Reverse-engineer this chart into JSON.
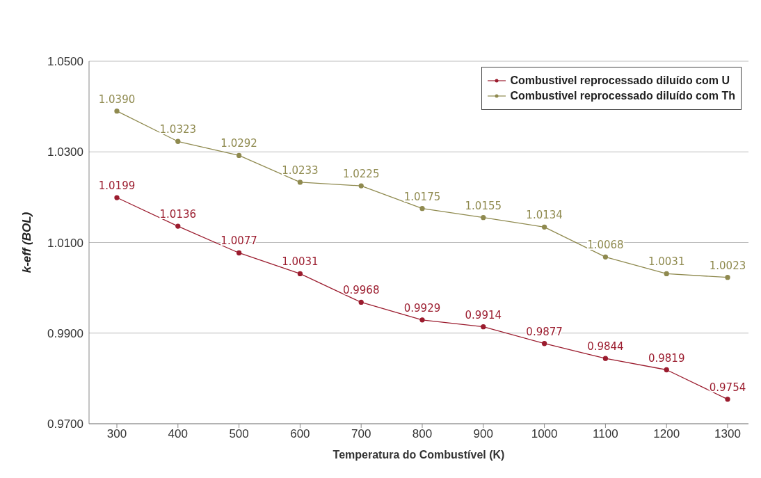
{
  "chart_data": {
    "type": "line",
    "xlabel": "Temperatura do Combustível (K)",
    "ylabel": "k-eff (BOL)",
    "categories": [
      "300",
      "400",
      "500",
      "600",
      "700",
      "800",
      "900",
      "1000",
      "1100",
      "1200",
      "1300"
    ],
    "series": [
      {
        "name": "Combustivel reprocessado diluído com U",
        "color": "#9b1c2e",
        "values": [
          1.0199,
          1.0136,
          1.0077,
          1.0031,
          0.9968,
          0.9929,
          0.9914,
          0.9877,
          0.9844,
          0.9819,
          0.9754
        ],
        "value_labels": [
          "1.0199",
          "1.0136",
          "1.0077",
          "1.0031",
          "0.9968",
          "0.9929",
          "0.9914",
          "0.9877",
          "0.9844",
          "0.9819",
          "0.9754"
        ]
      },
      {
        "name": "Combustivel reprocessado diluído com Th",
        "color": "#8f8a4f",
        "values": [
          1.039,
          1.0323,
          1.0292,
          1.0233,
          1.0225,
          1.0175,
          1.0155,
          1.0134,
          1.0068,
          1.0031,
          1.0023
        ],
        "value_labels": [
          "1.0390",
          "1.0323",
          "1.0292",
          "1.0233",
          "1.0225",
          "1.0175",
          "1.0155",
          "1.0134",
          "1.0068",
          "1.0031",
          "1.0023"
        ]
      }
    ],
    "ylim": [
      0.97,
      1.05
    ],
    "yticks": [
      {
        "value": 0.97,
        "label": "0.9700"
      },
      {
        "value": 0.99,
        "label": "0.9900"
      },
      {
        "value": 1.01,
        "label": "1.0100"
      },
      {
        "value": 1.03,
        "label": "1.0300"
      },
      {
        "value": 1.05,
        "label": "1.0500"
      }
    ],
    "grid": "y",
    "legend": "top right",
    "marker": "circle",
    "line_style": "solid"
  }
}
